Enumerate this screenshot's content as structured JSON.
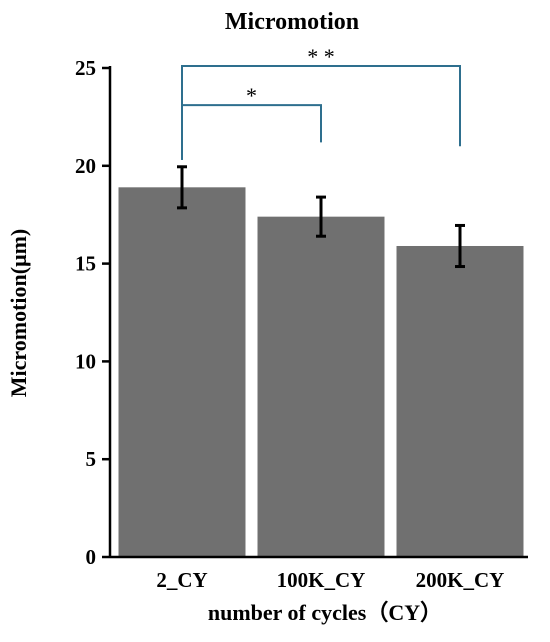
{
  "chart_data": {
    "type": "bar",
    "title": "Micromotion",
    "xlabel": "number of cycles（CY）",
    "ylabel": "Micromotion(μm)",
    "categories": [
      "2_CY",
      "100K_CY",
      "200K_CY"
    ],
    "values": [
      18.9,
      17.4,
      15.9
    ],
    "error": [
      1.05,
      1.0,
      1.05
    ],
    "ylim": [
      0,
      25
    ],
    "yticks": [
      0,
      5,
      10,
      15,
      20,
      25
    ],
    "grid": false,
    "legend": "none",
    "colors": {
      "bar": "#707070",
      "error": "#000000",
      "bracket": "#2e6f8e",
      "axis": "#000000"
    },
    "significance": [
      {
        "from": 0,
        "to": 1,
        "label": "*",
        "level": 23.1
      },
      {
        "from": 0,
        "to": 2,
        "label": "* *",
        "level": 25.1
      }
    ]
  }
}
